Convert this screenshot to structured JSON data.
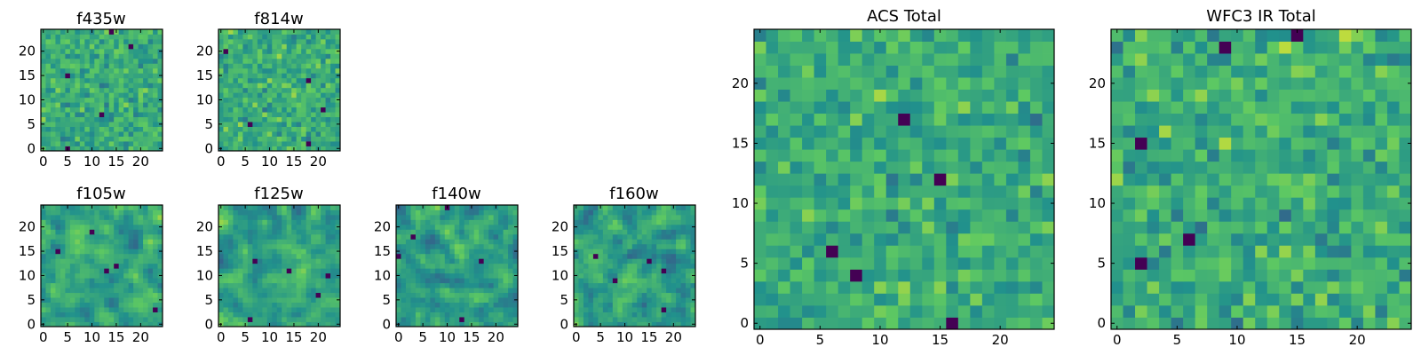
{
  "colormap": {
    "name": "viridis",
    "stops": [
      "#440154",
      "#3b528b",
      "#21918c",
      "#5ec962",
      "#fde725"
    ],
    "frame_color": "#000000",
    "background": "#ffffff"
  },
  "chart_data": [
    {
      "type": "heatmap",
      "title": "f435w",
      "grid_size": 25,
      "seed": 435,
      "smooth": 0,
      "mean": 0.62,
      "contrast": 0.18,
      "xticks": [
        0,
        5,
        10,
        15,
        20
      ],
      "yticks": [
        0,
        5,
        10,
        15,
        20
      ],
      "xtick_labels": [
        "0",
        "5",
        "10",
        "15",
        "20"
      ],
      "ytick_labels": [
        "0",
        "5",
        "10",
        "15",
        "20"
      ],
      "xlim": [
        -0.5,
        24.5
      ],
      "ylim": [
        -0.5,
        24.5
      ],
      "origin": "lower",
      "grid": false
    },
    {
      "type": "heatmap",
      "title": "f814w",
      "grid_size": 25,
      "seed": 814,
      "smooth": 0,
      "mean": 0.62,
      "contrast": 0.18,
      "xticks": [
        0,
        5,
        10,
        15,
        20
      ],
      "yticks": [
        0,
        5,
        10,
        15,
        20
      ],
      "xtick_labels": [
        "0",
        "5",
        "10",
        "15",
        "20"
      ],
      "ytick_labels": [
        "0",
        "5",
        "10",
        "15",
        "20"
      ],
      "xlim": [
        -0.5,
        24.5
      ],
      "ylim": [
        -0.5,
        24.5
      ],
      "origin": "lower",
      "grid": false
    },
    {
      "type": "heatmap",
      "title": "f105w",
      "grid_size": 25,
      "seed": 105,
      "smooth": 1,
      "mean": 0.58,
      "contrast": 0.22,
      "xticks": [
        0,
        5,
        10,
        15,
        20
      ],
      "yticks": [
        0,
        5,
        10,
        15,
        20
      ],
      "xtick_labels": [
        "0",
        "5",
        "10",
        "15",
        "20"
      ],
      "ytick_labels": [
        "0",
        "5",
        "10",
        "15",
        "20"
      ],
      "xlim": [
        -0.5,
        24.5
      ],
      "ylim": [
        -0.5,
        24.5
      ],
      "origin": "lower",
      "grid": false
    },
    {
      "type": "heatmap",
      "title": "f125w",
      "grid_size": 25,
      "seed": 125,
      "smooth": 1,
      "mean": 0.58,
      "contrast": 0.22,
      "xticks": [
        0,
        5,
        10,
        15,
        20
      ],
      "yticks": [
        0,
        5,
        10,
        15,
        20
      ],
      "xtick_labels": [
        "0",
        "5",
        "10",
        "15",
        "20"
      ],
      "ytick_labels": [
        "0",
        "5",
        "10",
        "15",
        "20"
      ],
      "xlim": [
        -0.5,
        24.5
      ],
      "ylim": [
        -0.5,
        24.5
      ],
      "origin": "lower",
      "grid": false
    },
    {
      "type": "heatmap",
      "title": "f140w",
      "grid_size": 25,
      "seed": 140,
      "smooth": 1,
      "mean": 0.56,
      "contrast": 0.24,
      "xticks": [
        0,
        5,
        10,
        15,
        20
      ],
      "yticks": [
        0,
        5,
        10,
        15,
        20
      ],
      "xtick_labels": [
        "0",
        "5",
        "10",
        "15",
        "20"
      ],
      "ytick_labels": [
        "0",
        "5",
        "10",
        "15",
        "20"
      ],
      "xlim": [
        -0.5,
        24.5
      ],
      "ylim": [
        -0.5,
        24.5
      ],
      "origin": "lower",
      "grid": false
    },
    {
      "type": "heatmap",
      "title": "f160w",
      "grid_size": 25,
      "seed": 160,
      "smooth": 1,
      "mean": 0.56,
      "contrast": 0.24,
      "xticks": [
        0,
        5,
        10,
        15,
        20
      ],
      "yticks": [
        0,
        5,
        10,
        15,
        20
      ],
      "xtick_labels": [
        "0",
        "5",
        "10",
        "15",
        "20"
      ],
      "ytick_labels": [
        "0",
        "5",
        "10",
        "15",
        "20"
      ],
      "xlim": [
        -0.5,
        24.5
      ],
      "ylim": [
        -0.5,
        24.5
      ],
      "origin": "lower",
      "grid": false
    },
    {
      "type": "heatmap",
      "title": "ACS Total",
      "grid_size": 25,
      "seed": 2001,
      "smooth": 0,
      "mean": 0.62,
      "contrast": 0.18,
      "xticks": [
        0,
        5,
        10,
        15,
        20
      ],
      "yticks": [
        0,
        5,
        10,
        15,
        20
      ],
      "xtick_labels": [
        "0",
        "5",
        "10",
        "15",
        "20"
      ],
      "ytick_labels": [
        "0",
        "5",
        "10",
        "15",
        "20"
      ],
      "xlim": [
        -0.5,
        24.5
      ],
      "ylim": [
        -0.5,
        24.5
      ],
      "origin": "lower",
      "grid": false
    },
    {
      "type": "heatmap",
      "title": "WFC3 IR Total",
      "grid_size": 25,
      "seed": 3003,
      "smooth": 0,
      "mean": 0.62,
      "contrast": 0.2,
      "xticks": [
        0,
        5,
        10,
        15,
        20
      ],
      "yticks": [
        0,
        5,
        10,
        15,
        20
      ],
      "xtick_labels": [
        "0",
        "5",
        "10",
        "15",
        "20"
      ],
      "ytick_labels": [
        "0",
        "5",
        "10",
        "15",
        "20"
      ],
      "xlim": [
        -0.5,
        24.5
      ],
      "ylim": [
        -0.5,
        24.5
      ],
      "origin": "lower",
      "grid": false
    }
  ]
}
